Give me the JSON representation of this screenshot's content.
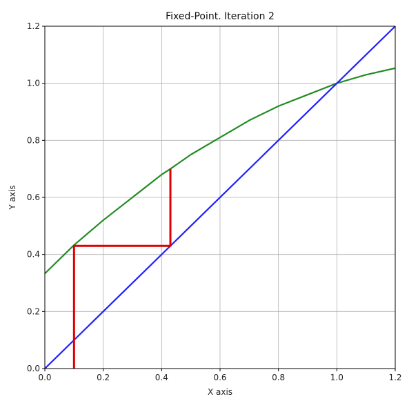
{
  "chart_data": {
    "type": "line",
    "title": "Fixed-Point. Iteration 2",
    "xlabel": "X axis",
    "ylabel": "Y axis",
    "xlim": [
      0.0,
      1.2
    ],
    "ylim": [
      0.0,
      1.2
    ],
    "x_ticks": [
      "0.0",
      "0.2",
      "0.4",
      "0.6",
      "0.8",
      "1.0",
      "1.2"
    ],
    "y_ticks": [
      "0.0",
      "0.2",
      "0.4",
      "0.6",
      "0.8",
      "1.0",
      "1.2"
    ],
    "grid": true,
    "series": [
      {
        "color": "#228B22",
        "x": [
          0.0,
          0.1,
          0.2,
          0.3,
          0.4,
          0.43,
          0.5,
          0.6,
          0.7,
          0.8,
          0.9,
          1.0,
          1.1,
          1.2
        ],
        "y": [
          0.333,
          0.433,
          0.52,
          0.6,
          0.68,
          0.7,
          0.75,
          0.81,
          0.87,
          0.92,
          0.96,
          1.0,
          1.03,
          1.053
        ]
      },
      {
        "color": "#1f1fff",
        "x": [
          0.0,
          1.2
        ],
        "y": [
          0.0,
          1.2
        ]
      },
      {
        "color": "#e00000",
        "x": [
          0.1,
          0.1,
          0.43,
          0.43
        ],
        "y": [
          0.0,
          0.43,
          0.43,
          0.7
        ]
      }
    ]
  }
}
